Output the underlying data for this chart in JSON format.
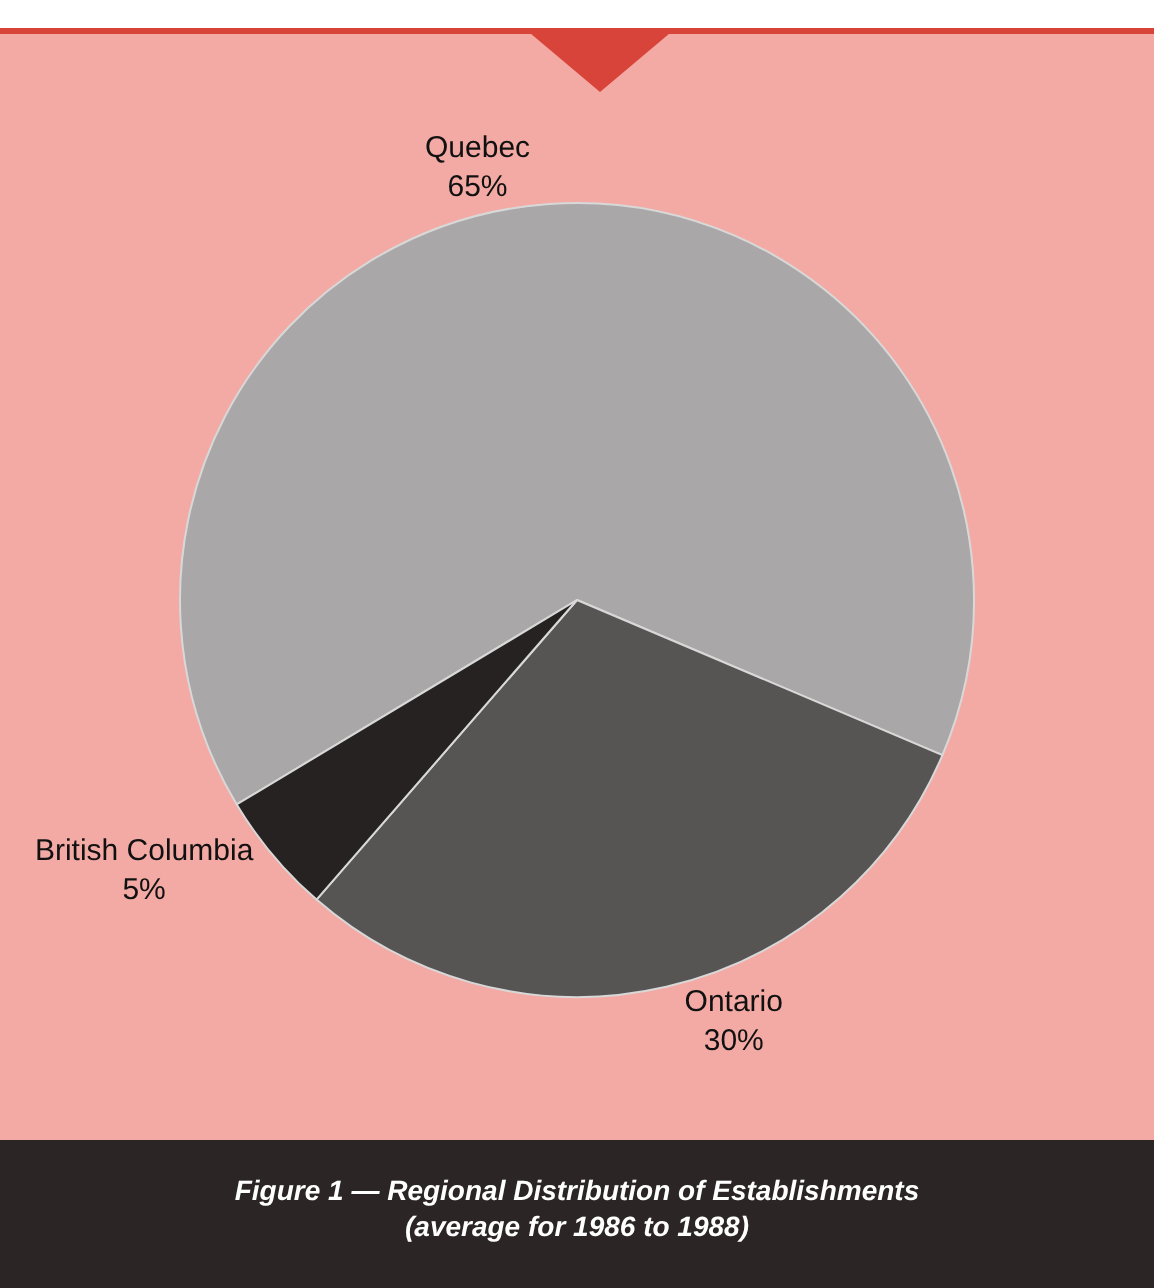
{
  "chart_data": {
    "type": "pie",
    "title": "Figure 1 — Regional Distribution of Establishments",
    "subtitle": "(average for 1986 to 1988)",
    "categories": [
      "Quebec",
      "Ontario",
      "British Columbia"
    ],
    "values": [
      65,
      30,
      5
    ],
    "value_labels": [
      "65%",
      "30%",
      "5%"
    ],
    "colors": [
      "#a9a7a7",
      "#575454",
      "#262222"
    ],
    "legend": false
  }
}
